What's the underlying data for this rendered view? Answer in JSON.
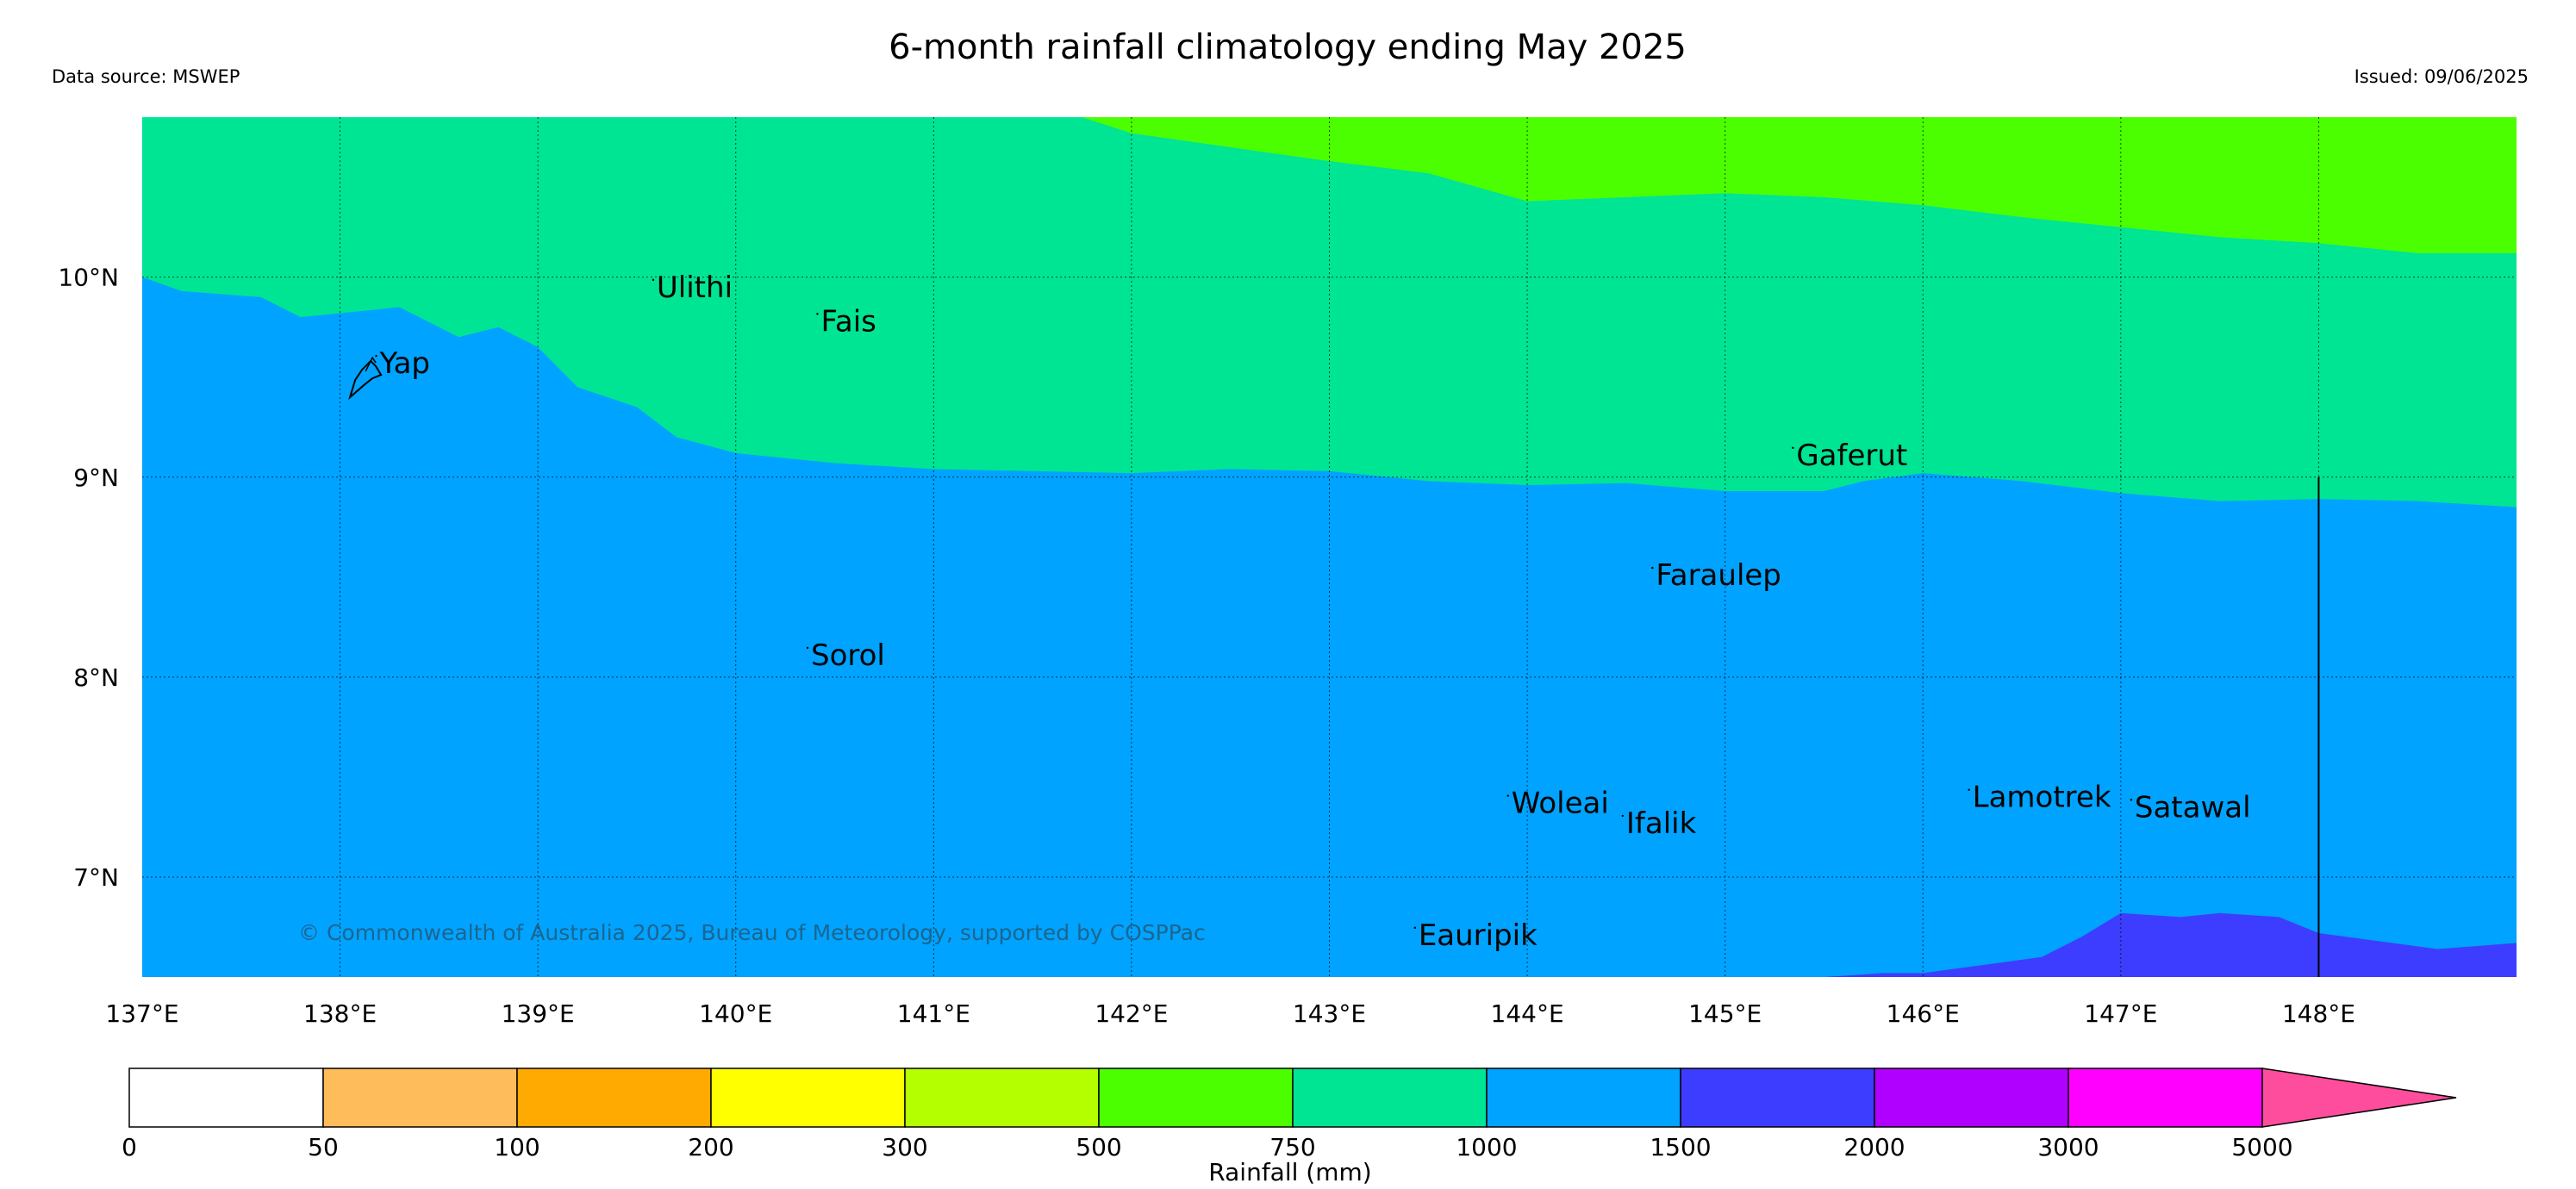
{
  "header": {
    "title": "6-month rainfall climatology ending May 2025",
    "data_source": "Data source: MSWEP",
    "issued": "Issued: 09/06/2025"
  },
  "map": {
    "lon_range": [
      137.0,
      149.0
    ],
    "lat_range": [
      6.5,
      10.8
    ],
    "lon_ticks": [
      {
        "value": 137,
        "label": "137°E"
      },
      {
        "value": 138,
        "label": "138°E"
      },
      {
        "value": 139,
        "label": "139°E"
      },
      {
        "value": 140,
        "label": "140°E"
      },
      {
        "value": 141,
        "label": "141°E"
      },
      {
        "value": 142,
        "label": "142°E"
      },
      {
        "value": 143,
        "label": "143°E"
      },
      {
        "value": 144,
        "label": "144°E"
      },
      {
        "value": 145,
        "label": "145°E"
      },
      {
        "value": 146,
        "label": "146°E"
      },
      {
        "value": 147,
        "label": "147°E"
      },
      {
        "value": 148,
        "label": "148°E"
      }
    ],
    "lat_ticks": [
      {
        "value": 10,
        "label": "10°N"
      },
      {
        "value": 9,
        "label": "9°N"
      },
      {
        "value": 8,
        "label": "8°N"
      },
      {
        "value": 7,
        "label": "7°N"
      }
    ],
    "gridlines": true,
    "places": [
      {
        "name": "Yap",
        "lon": 138.2,
        "lat": 9.52
      },
      {
        "name": "Ulithi",
        "lon": 139.6,
        "lat": 9.9
      },
      {
        "name": "Fais",
        "lon": 140.43,
        "lat": 9.73
      },
      {
        "name": "Gaferut",
        "lon": 145.36,
        "lat": 9.06
      },
      {
        "name": "Faraulep",
        "lon": 144.65,
        "lat": 8.46
      },
      {
        "name": "Sorol",
        "lon": 140.38,
        "lat": 8.06
      },
      {
        "name": "Woleai",
        "lon": 143.92,
        "lat": 7.32
      },
      {
        "name": "Ifalik",
        "lon": 144.5,
        "lat": 7.22
      },
      {
        "name": "Lamotrek",
        "lon": 146.25,
        "lat": 7.35
      },
      {
        "name": "Satawal",
        "lon": 147.07,
        "lat": 7.3
      },
      {
        "name": "Eauripik",
        "lon": 143.45,
        "lat": 6.66
      }
    ],
    "boundary_line": {
      "lon": 148.0,
      "lat_from": 6.5,
      "lat_to": 9.0
    },
    "credit": "© Commonwealth of Australia 2025, Bureau of Meteorology, supported by COSPPac",
    "rainfall_zones": [
      {
        "range": "500-750 mm",
        "color": "#4cff00",
        "boundary_north_of": "750-1000 mm",
        "boundary": [
          [
            141.75,
            10.8
          ],
          [
            142.0,
            10.72
          ],
          [
            142.5,
            10.65
          ],
          [
            143.0,
            10.58
          ],
          [
            143.5,
            10.52
          ],
          [
            144.0,
            10.38
          ],
          [
            144.5,
            10.4
          ],
          [
            145.0,
            10.42
          ],
          [
            145.5,
            10.4
          ],
          [
            146.0,
            10.36
          ],
          [
            146.5,
            10.3
          ],
          [
            147.0,
            10.25
          ],
          [
            147.5,
            10.2
          ],
          [
            148.0,
            10.17
          ],
          [
            148.5,
            10.12
          ],
          [
            149.0,
            10.12
          ]
        ]
      },
      {
        "range": "750-1000 mm",
        "color": "#00e594",
        "boundary": [
          [
            137.0,
            10.0
          ],
          [
            137.2,
            9.93
          ],
          [
            137.6,
            9.9
          ],
          [
            137.8,
            9.8
          ],
          [
            138.0,
            9.82
          ],
          [
            138.3,
            9.85
          ],
          [
            138.6,
            9.7
          ],
          [
            138.8,
            9.75
          ],
          [
            139.0,
            9.65
          ],
          [
            139.2,
            9.45
          ],
          [
            139.5,
            9.35
          ],
          [
            139.7,
            9.2
          ],
          [
            140.0,
            9.12
          ],
          [
            140.5,
            9.07
          ],
          [
            141.0,
            9.04
          ],
          [
            141.5,
            9.03
          ],
          [
            142.0,
            9.02
          ],
          [
            142.5,
            9.04
          ],
          [
            143.0,
            9.03
          ],
          [
            143.5,
            8.98
          ],
          [
            144.0,
            8.96
          ],
          [
            144.5,
            8.97
          ],
          [
            145.0,
            8.93
          ],
          [
            145.5,
            8.93
          ],
          [
            145.7,
            8.98
          ],
          [
            146.0,
            9.02
          ],
          [
            146.5,
            8.98
          ],
          [
            147.0,
            8.92
          ],
          [
            147.5,
            8.88
          ],
          [
            148.0,
            8.89
          ],
          [
            148.5,
            8.88
          ],
          [
            149.0,
            8.85
          ]
        ]
      },
      {
        "range": "1000-1500 mm",
        "color": "#00a3ff"
      },
      {
        "range": "1500-2000 mm",
        "color": "#3d3dff",
        "boundary": [
          [
            145.5,
            6.5
          ],
          [
            145.8,
            6.52
          ],
          [
            146.0,
            6.52
          ],
          [
            146.3,
            6.56
          ],
          [
            146.6,
            6.6
          ],
          [
            146.8,
            6.7
          ],
          [
            147.0,
            6.82
          ],
          [
            147.3,
            6.8
          ],
          [
            147.5,
            6.82
          ],
          [
            147.8,
            6.8
          ],
          [
            148.0,
            6.72
          ],
          [
            148.3,
            6.68
          ],
          [
            148.6,
            6.64
          ],
          [
            149.0,
            6.67
          ],
          [
            149.0,
            6.5
          ]
        ]
      }
    ]
  },
  "colorbar": {
    "label": "Rainfall (mm)",
    "ticks": [
      "0",
      "50",
      "100",
      "200",
      "300",
      "500",
      "750",
      "1000",
      "1500",
      "2000",
      "3000",
      "5000"
    ],
    "colors": [
      "#ffffff",
      "#ffbc5a",
      "#ffaa00",
      "#ffff00",
      "#b4ff00",
      "#4cff00",
      "#00e594",
      "#00a3ff",
      "#3d3dff",
      "#b000ff",
      "#ff00ff",
      "#ff4d9e"
    ]
  }
}
